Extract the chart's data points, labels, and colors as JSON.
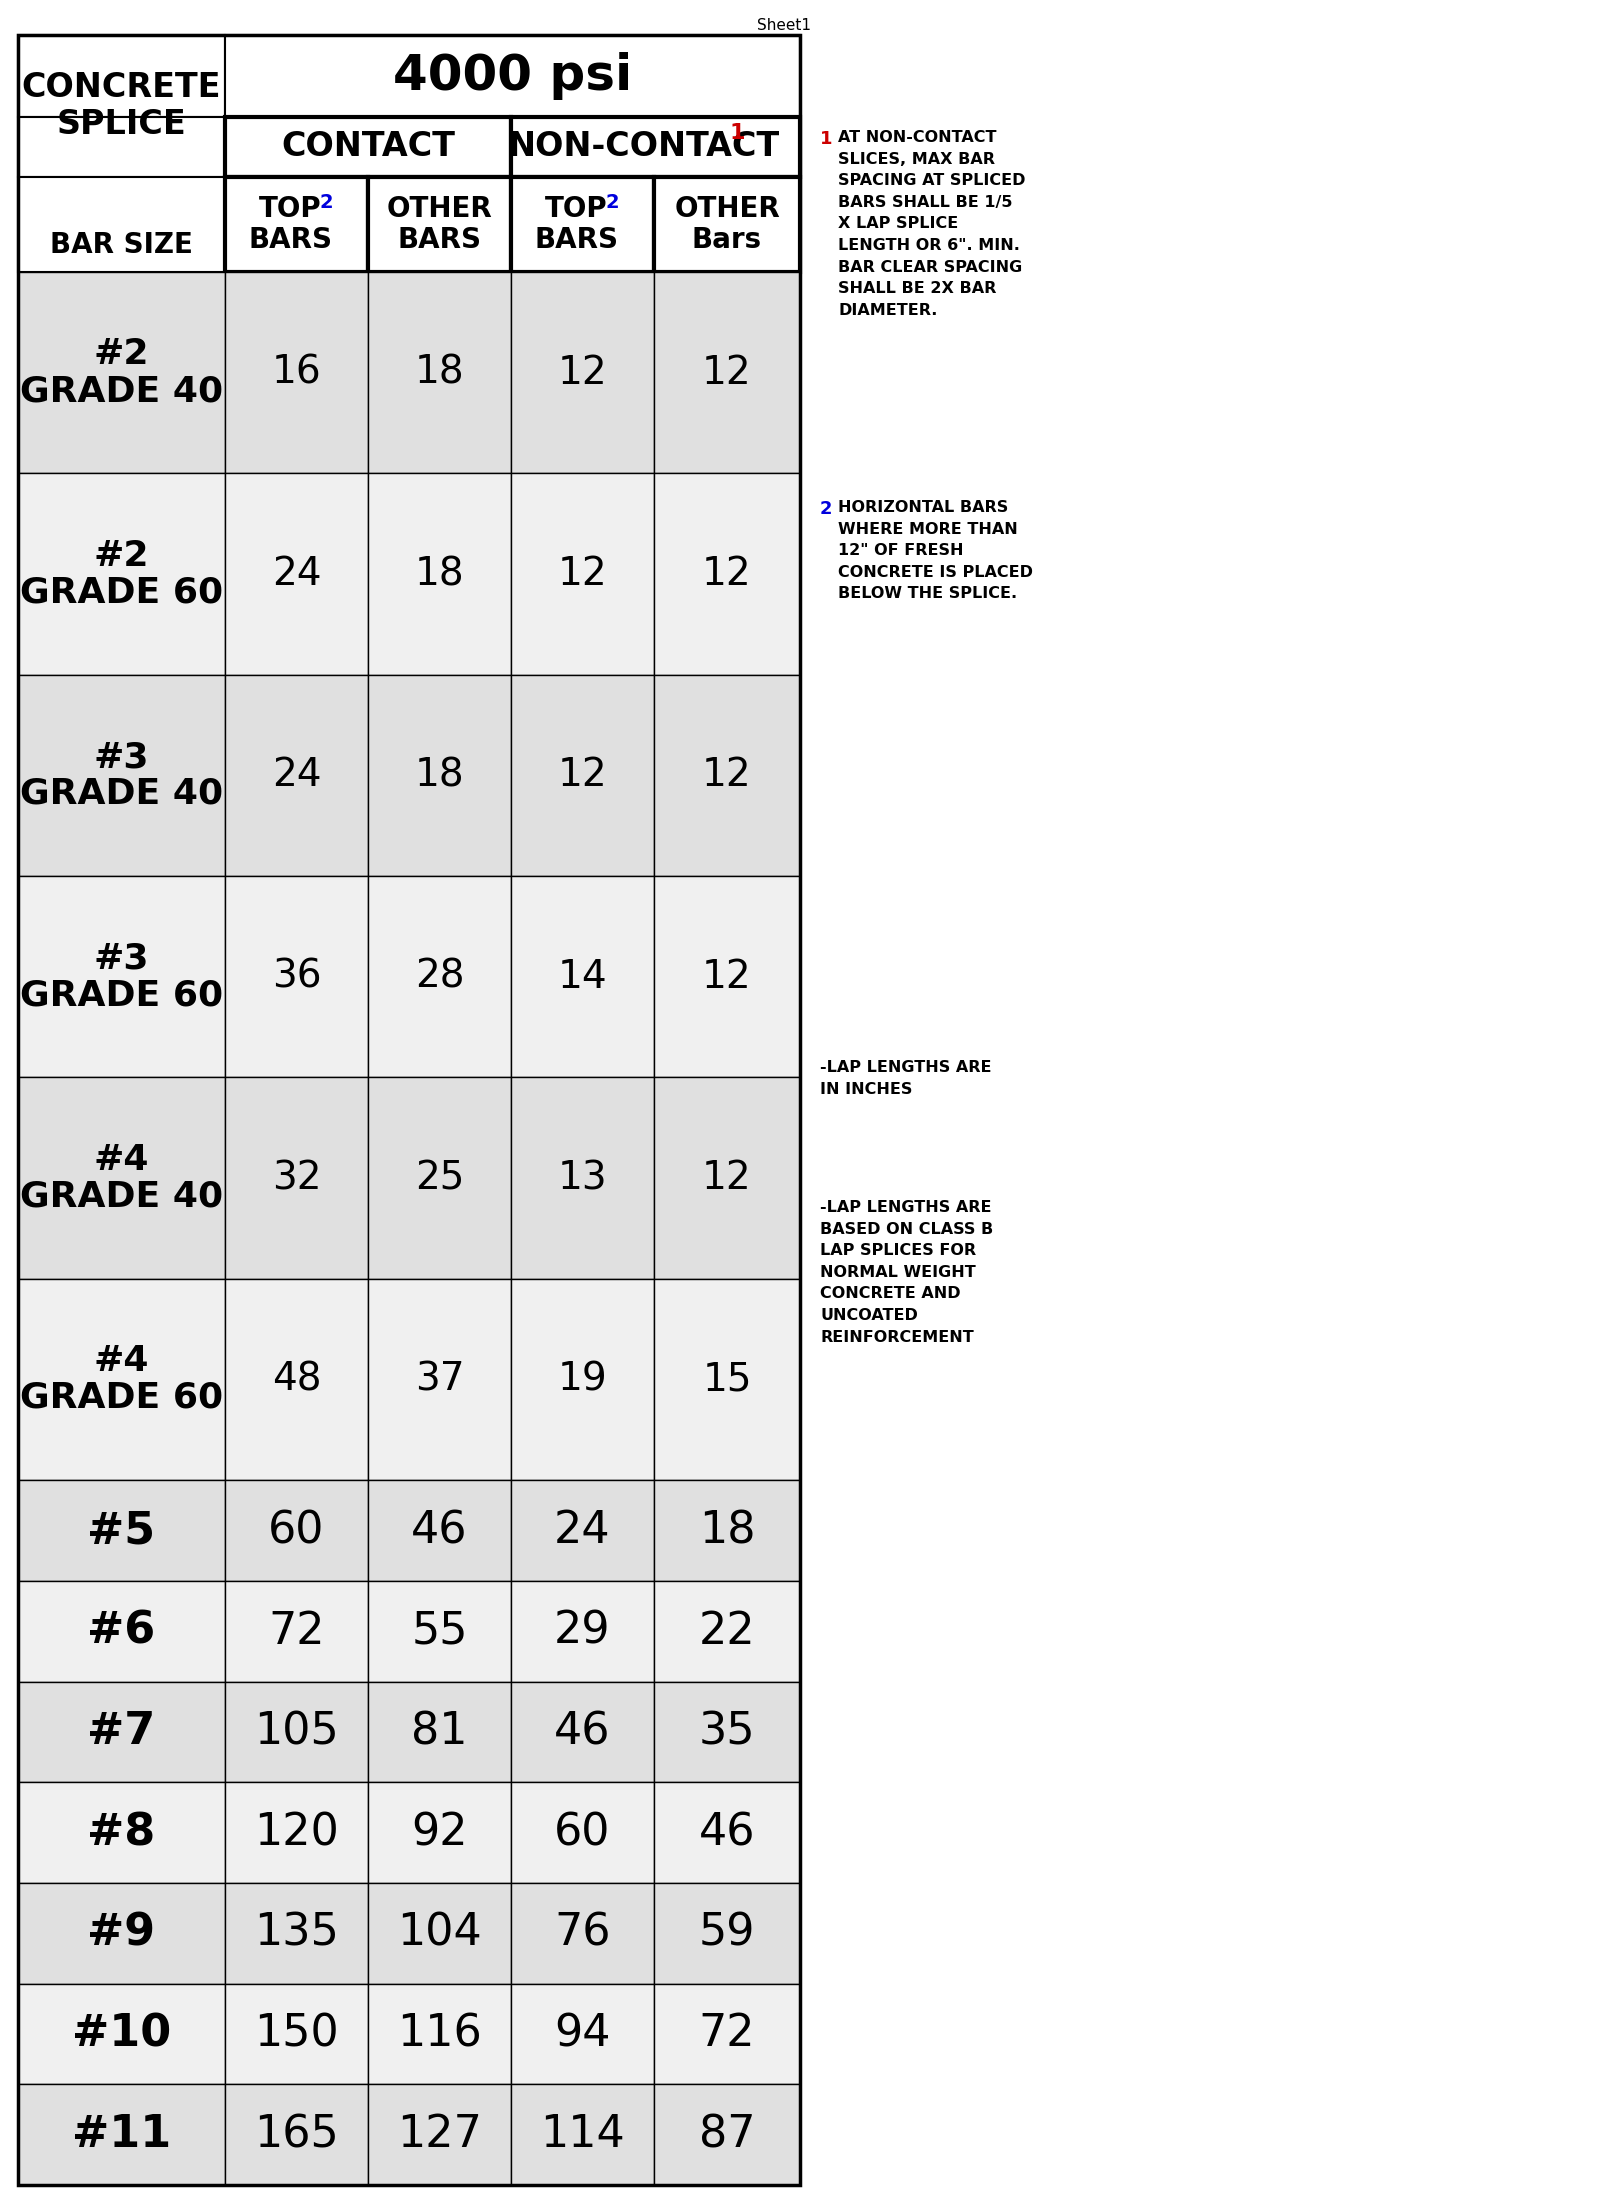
{
  "sheet_title": "Sheet1",
  "rows": [
    {
      "label": "#2\nGRADE 40",
      "values": [
        16,
        18,
        12,
        12
      ],
      "bg": "#e0e0e0"
    },
    {
      "label": "#2\nGRADE 60",
      "values": [
        24,
        18,
        12,
        12
      ],
      "bg": "#f0f0f0"
    },
    {
      "label": "#3\nGRADE 40",
      "values": [
        24,
        18,
        12,
        12
      ],
      "bg": "#e0e0e0"
    },
    {
      "label": "#3\nGRADE 60",
      "values": [
        36,
        28,
        14,
        12
      ],
      "bg": "#f0f0f0"
    },
    {
      "label": "#4\nGRADE 40",
      "values": [
        32,
        25,
        13,
        12
      ],
      "bg": "#e0e0e0"
    },
    {
      "label": "#4\nGRADE 60",
      "values": [
        48,
        37,
        19,
        15
      ],
      "bg": "#f0f0f0"
    },
    {
      "label": "#5",
      "values": [
        60,
        46,
        24,
        18
      ],
      "bg": "#e0e0e0"
    },
    {
      "label": "#6",
      "values": [
        72,
        55,
        29,
        22
      ],
      "bg": "#f0f0f0"
    },
    {
      "label": "#7",
      "values": [
        105,
        81,
        46,
        35
      ],
      "bg": "#e0e0e0"
    },
    {
      "label": "#8",
      "values": [
        120,
        92,
        60,
        46
      ],
      "bg": "#f0f0f0"
    },
    {
      "label": "#9",
      "values": [
        135,
        104,
        76,
        59
      ],
      "bg": "#e0e0e0"
    },
    {
      "label": "#10",
      "values": [
        150,
        116,
        94,
        72
      ],
      "bg": "#f0f0f0"
    },
    {
      "label": "#11",
      "values": [
        165,
        127,
        114,
        87
      ],
      "bg": "#e0e0e0"
    }
  ],
  "footnote1_num": "1",
  "footnote1_text": "AT NON-CONTACT\nSLICES, MAX BAR\nSPACING AT SPLICED\nBARS SHALL BE 1/5\nX LAP SPLICE\nLENGTH OR 6\". MIN.\nBAR CLEAR SPACING\nSHALL BE 2X BAR\nDIAMETER.",
  "footnote2_num": "2",
  "footnote2_text": "HORIZONTAL BARS\nWHERE MORE THAN\n12\" OF FRESH\nCONCRETE IS PLACED\nBELOW THE SPLICE.",
  "footnote3": "-LAP LENGTHS ARE\nIN INCHES",
  "footnote4": "-LAP LENGTHS ARE\nBASED ON CLASS B\nLAP SPLICES FOR\nNORMAL WEIGHT\nCONCRETE AND\nUNCOATED\nREINFORCEMENT",
  "bg_white": "#ffffff",
  "text_color_blue": "#0000dd",
  "text_color_red": "#cc0000"
}
